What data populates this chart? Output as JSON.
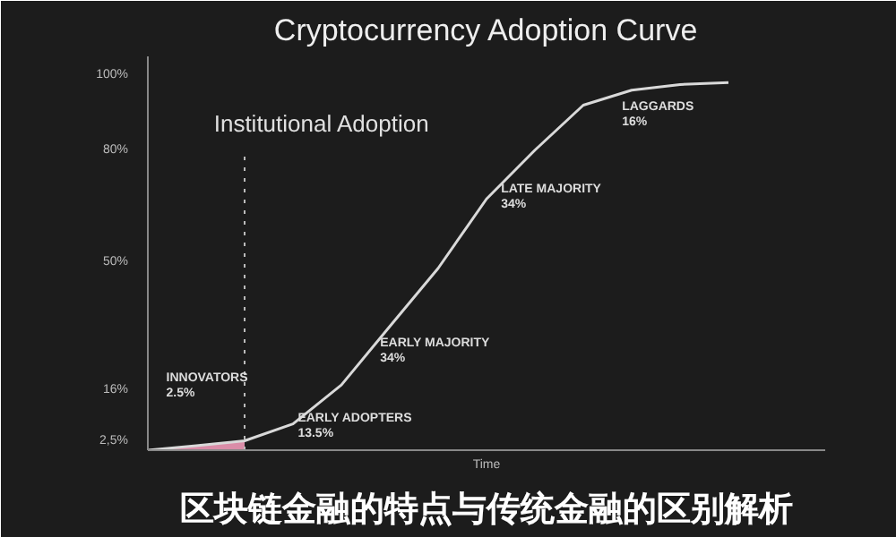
{
  "chart_data": {
    "type": "line",
    "title": "Cryptocurrency Adoption Curve",
    "xlabel": "Time",
    "categories": [
      null,
      null,
      null,
      null,
      null,
      null,
      null,
      null,
      null,
      null,
      null,
      null,
      null,
      null,
      null
    ],
    "series": [
      {
        "color": "#d9d9d9",
        "values": [
          0,
          1.2,
          2.5,
          7,
          17.4,
          33,
          48.5,
          67,
          80,
          92,
          96,
          97.5,
          98,
          null,
          null
        ]
      },
      {
        "type": "area",
        "color": "#ef9ab8",
        "values": [
          0,
          1.2,
          2.5,
          null,
          null,
          null,
          null,
          null,
          null,
          null,
          null,
          null,
          null,
          null,
          null
        ]
      }
    ],
    "ylim": [
      0,
      105
    ],
    "yticks": [
      {
        "value": 100,
        "label": "100%"
      },
      {
        "value": 80,
        "label": "80%"
      },
      {
        "value": 50,
        "label": "50%"
      },
      {
        "value": 16,
        "label": "16%"
      },
      {
        "value": 2.5,
        "label": "2,5%"
      }
    ],
    "tick_labels": "y",
    "annotations": [
      "Institutional Adoption",
      "INNOVATORS\n2.5%",
      "EARLY ADOPTERS\n13.5%",
      "EARLY MAJORITY\n34%",
      "LATE MAJORITY\n34%",
      "LAGGARDS\n16%",
      "区块链金融的特点与传统金融的区别解析"
    ],
    "grid": false
  }
}
